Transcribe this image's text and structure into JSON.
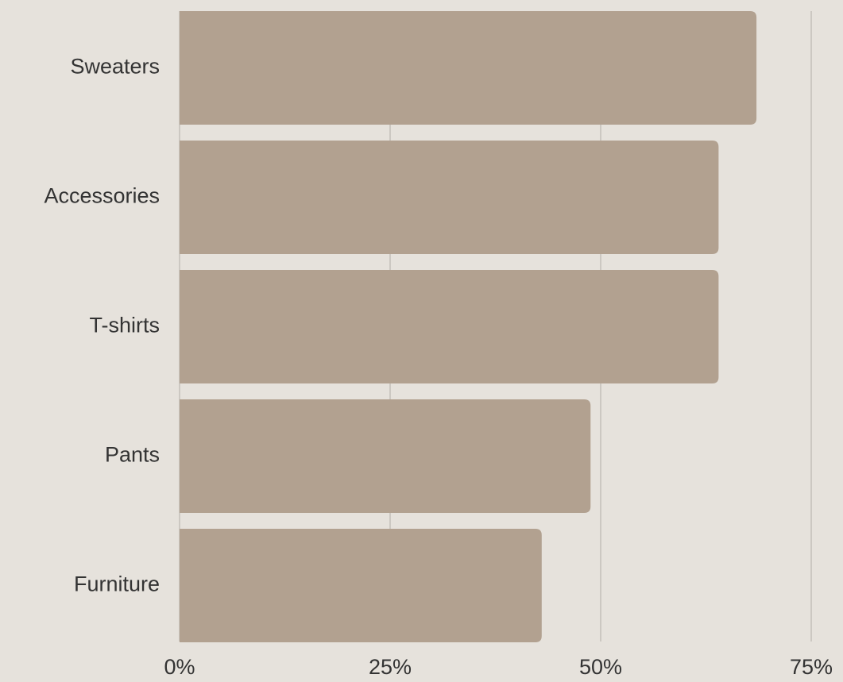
{
  "chart_data": {
    "type": "bar",
    "orientation": "horizontal",
    "categories": [
      "Sweaters",
      "Accessories",
      "T-shirts",
      "Pants",
      "Furniture"
    ],
    "values": [
      68.5,
      64,
      64,
      48.8,
      43
    ],
    "xlim": [
      0,
      75
    ],
    "x_ticks": [
      0,
      25,
      50,
      75
    ],
    "x_tick_labels": [
      "0%",
      "25%",
      "50%",
      "75%"
    ],
    "grid": "vertical",
    "colors": {
      "background": "#e6e2dc",
      "bar": "#b2a190",
      "grid": "#c4c0ba",
      "text": "#333333"
    }
  }
}
